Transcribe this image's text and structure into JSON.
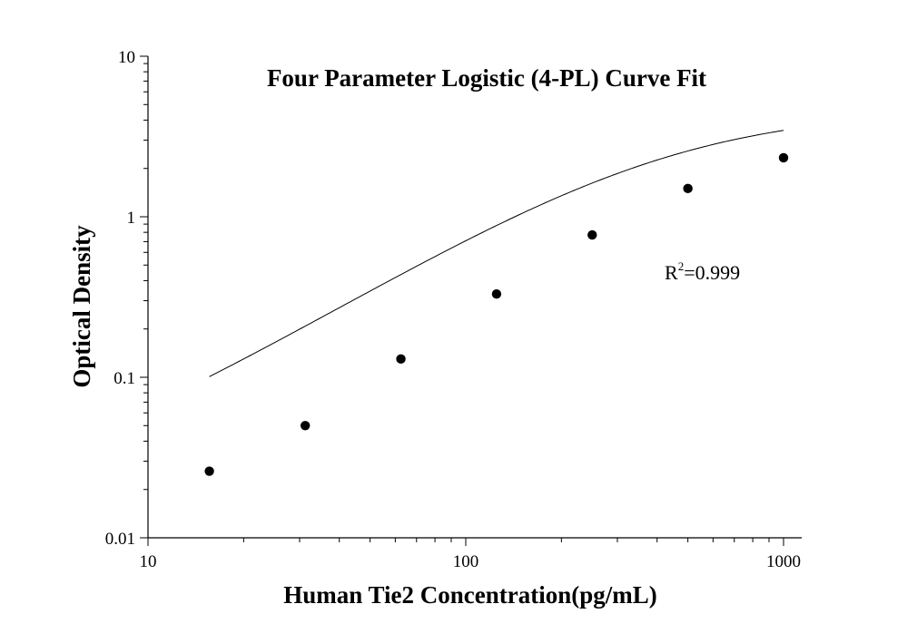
{
  "chart_data": {
    "type": "scatter",
    "title": "Four Parameter Logistic (4-PL) Curve Fit",
    "xlabel": "Human Tie2 Concentration(pg/mL)",
    "ylabel": "Optical Density",
    "xscale": "log",
    "yscale": "log",
    "xlim": [
      10,
      1000
    ],
    "ylim": [
      0.01,
      10
    ],
    "x_ticks": [
      10,
      100,
      1000
    ],
    "x_tick_labels": [
      "10",
      "100",
      "1000"
    ],
    "y_ticks": [
      0.01,
      0.1,
      1,
      10
    ],
    "y_tick_labels": [
      "0.01",
      "0.1",
      "1",
      "10"
    ],
    "grid": false,
    "legend": "none",
    "series": [
      {
        "x": [
          15.6,
          31.25,
          62.5,
          125,
          250,
          500,
          1000
        ],
        "y": [
          0.026,
          0.05,
          0.13,
          0.33,
          0.77,
          1.5,
          2.33
        ],
        "marker": "circle",
        "color": "#000000"
      }
    ],
    "fit_curve": {
      "model": "4-PL",
      "x_range": [
        15.6,
        1000
      ],
      "params": {
        "a": 0.015,
        "b": 1.2,
        "c": 430,
        "d": 4.7
      },
      "color": "#000000"
    },
    "annotations": [
      {
        "text": "R",
        "superscript": "2",
        "suffix": "=0.999"
      }
    ]
  }
}
